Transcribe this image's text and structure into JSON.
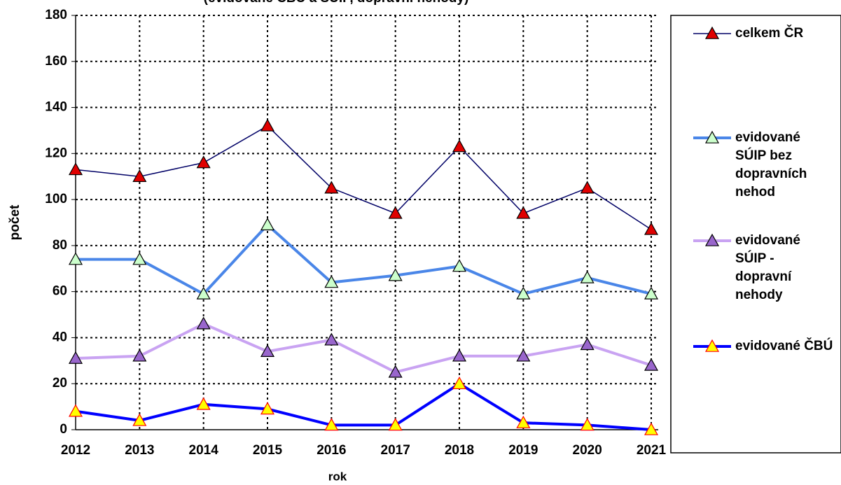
{
  "chart_data": {
    "type": "line",
    "subtitle": "(evidované ČBÚ a SÚIP, dopravní nehody)",
    "x_label": "rok",
    "y_label": "počet",
    "categories": [
      "2012",
      "2013",
      "2014",
      "2015",
      "2016",
      "2017",
      "2018",
      "2019",
      "2020",
      "2021"
    ],
    "series": [
      {
        "name": "celkem ČR",
        "color": "#000066",
        "marker_fill": "#e00000",
        "marker_edge": "#000000",
        "line_width": 1.5,
        "values": [
          113,
          110,
          116,
          132,
          105,
          94,
          123,
          94,
          105,
          87
        ]
      },
      {
        "name": "evidované SÚIP bez dopravních nehod",
        "color": "#4a86e8",
        "marker_fill": "#ccffcc",
        "marker_edge": "#000000",
        "line_width": 4,
        "values": [
          74,
          74,
          59,
          89,
          64,
          67,
          71,
          59,
          66,
          59
        ]
      },
      {
        "name": "evidované SÚIP - dopravní nehody",
        "color": "#c9a3f2",
        "marker_fill": "#9966cc",
        "marker_edge": "#000000",
        "line_width": 4,
        "values": [
          31,
          32,
          46,
          34,
          39,
          25,
          32,
          32,
          37,
          28
        ]
      },
      {
        "name": "evidované ČBÚ",
        "color": "#0000ff",
        "marker_fill": "#ffff00",
        "marker_edge": "#ff0000",
        "line_width": 4,
        "values": [
          8,
          4,
          11,
          9,
          2,
          2,
          20,
          3,
          2,
          0
        ]
      }
    ],
    "ylim": [
      0,
      180
    ],
    "yticks": [
      0,
      20,
      40,
      60,
      80,
      100,
      120,
      140,
      160,
      180
    ],
    "grid": true,
    "legend": "right"
  }
}
